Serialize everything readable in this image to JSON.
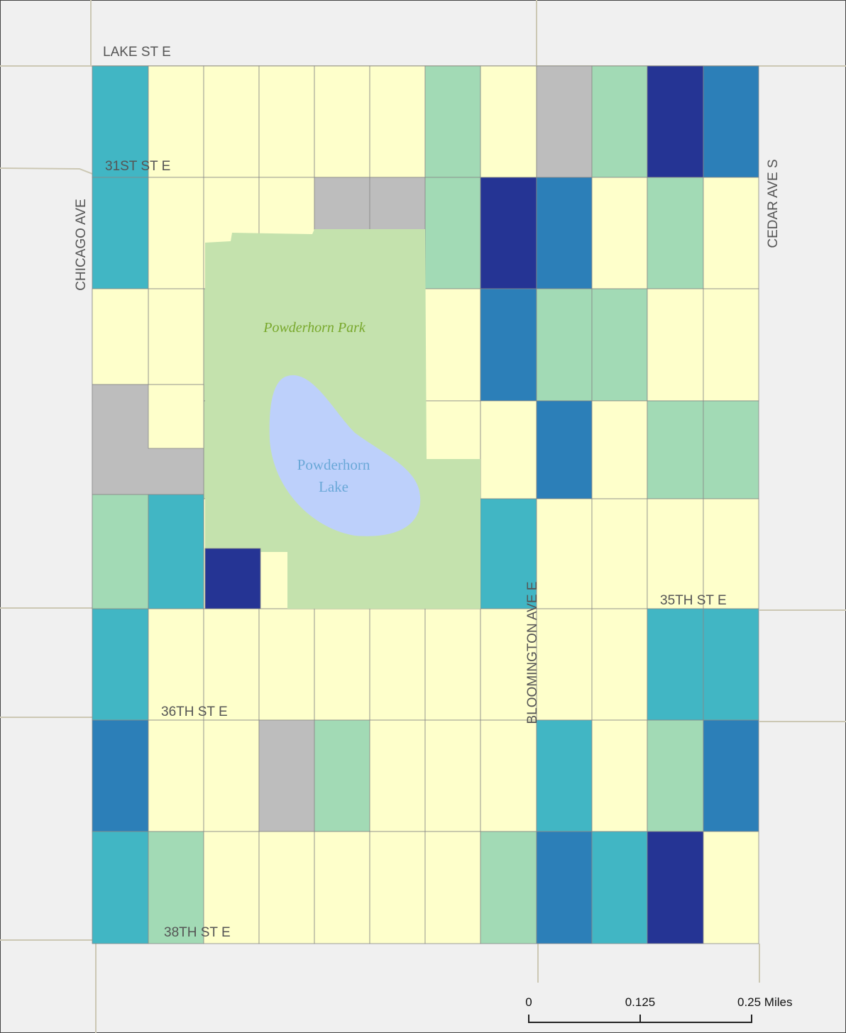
{
  "map": {
    "streets": [
      "LAKE ST E",
      "31ST ST E",
      "CHICAGO AVE",
      "CEDAR AVE S",
      "BLOOMINGTON AVE E",
      "35TH ST E",
      "36TH ST E",
      "38TH ST E"
    ],
    "park": "Powderhorn Park",
    "lake": [
      "Powderhorn",
      "Lake"
    ],
    "scale_bar": {
      "ticks": [
        0,
        0.125,
        {
          "value": 0.25,
          "label": "0.25 Miles"
        }
      ],
      "lim": [
        0,
        0.25
      ]
    }
  }
}
